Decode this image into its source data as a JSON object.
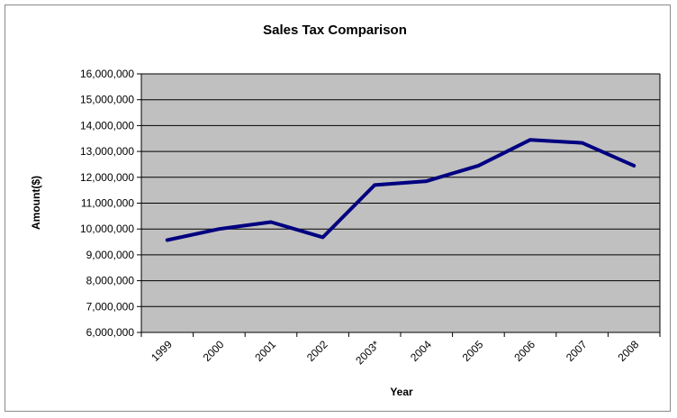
{
  "chart_data": {
    "type": "line",
    "title": "Sales Tax Comparison",
    "xlabel": "Year",
    "ylabel": "Amount($)",
    "categories": [
      "1999",
      "2000",
      "2001",
      "2002",
      "2003*",
      "2004",
      "2005",
      "2006",
      "2007",
      "2008"
    ],
    "series": [
      {
        "values": [
          9570000,
          10000000,
          10270000,
          9680000,
          11700000,
          11850000,
          12450000,
          13450000,
          13330000,
          12450000
        ]
      }
    ],
    "ylim": [
      6000000,
      16000000
    ],
    "yticks": [
      6000000,
      7000000,
      8000000,
      9000000,
      10000000,
      11000000,
      12000000,
      13000000,
      14000000,
      15000000,
      16000000
    ],
    "ytick_labels": [
      "6,000,000",
      "7,000,000",
      "8,000,000",
      "9,000,000",
      "10,000,000",
      "11,000,000",
      "12,000,000",
      "13,000,000",
      "14,000,000",
      "15,000,000",
      "16,000,000"
    ],
    "grid": true,
    "legend": "none",
    "colors": {
      "plot_background": "#c0c0c0",
      "line": "#000080",
      "grid": "#000000"
    }
  }
}
